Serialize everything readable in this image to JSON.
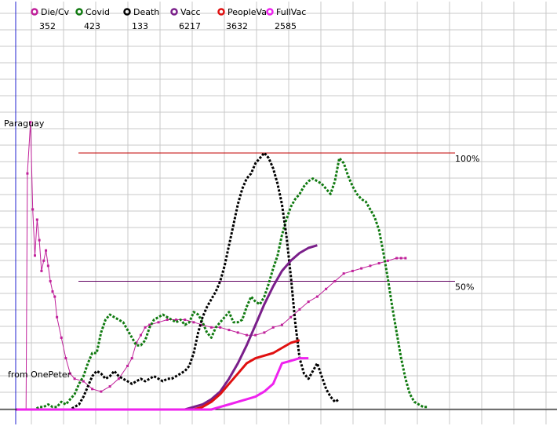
{
  "chart_data": {
    "type": "line",
    "title": "Paraguay",
    "credit": "from OnePeter",
    "grid": true,
    "ylim": [
      0,
      100
    ],
    "reference_lines": [
      {
        "label": "100%",
        "value": 100,
        "color": "#c00000"
      },
      {
        "label": "50%",
        "value": 50,
        "color": "#600060"
      }
    ],
    "legend": {
      "placement": "top",
      "items": [
        {
          "name": "Die/Cv",
          "value": "352",
          "color": "#c0209a"
        },
        {
          "name": "Covid",
          "value": "423",
          "color": "#107a10"
        },
        {
          "name": "Death",
          "value": "133",
          "color": "#000000"
        },
        {
          "name": "Vacc",
          "value": "6217",
          "color": "#7a1f8a"
        },
        {
          "name": "PeopleVa",
          "value": "3632",
          "color": "#e01010"
        },
        {
          "name": "FullVac",
          "value": "2585",
          "color": "#ee22ee"
        }
      ]
    },
    "series": [
      {
        "name": "Die/Cv",
        "color": "#c0209a",
        "points": [
          [
            0,
            0
          ],
          [
            2,
            0
          ],
          [
            2.3,
            92
          ],
          [
            3,
            112
          ],
          [
            3.5,
            78
          ],
          [
            4,
            60
          ],
          [
            4.5,
            74
          ],
          [
            5,
            66
          ],
          [
            5.5,
            54
          ],
          [
            6,
            58
          ],
          [
            6.5,
            62
          ],
          [
            7,
            56
          ],
          [
            7.5,
            50
          ],
          [
            8,
            46
          ],
          [
            8.5,
            44
          ],
          [
            9,
            36
          ],
          [
            10,
            28
          ],
          [
            11,
            20
          ],
          [
            12,
            14
          ],
          [
            13,
            12
          ],
          [
            15,
            11
          ],
          [
            17,
            8
          ],
          [
            19,
            7
          ],
          [
            21,
            9
          ],
          [
            23,
            12
          ],
          [
            25,
            17
          ],
          [
            26,
            20
          ],
          [
            27,
            26
          ],
          [
            28,
            29
          ],
          [
            29,
            32
          ],
          [
            30,
            33
          ],
          [
            32,
            34
          ],
          [
            34,
            35
          ],
          [
            36,
            35
          ],
          [
            38,
            35
          ],
          [
            40,
            34
          ],
          [
            42,
            33
          ],
          [
            44,
            32
          ],
          [
            46,
            32
          ],
          [
            48,
            31
          ],
          [
            50,
            30
          ],
          [
            52,
            29
          ],
          [
            54,
            29
          ],
          [
            56,
            30
          ],
          [
            58,
            32
          ],
          [
            60,
            33
          ],
          [
            62,
            36
          ],
          [
            64,
            39
          ],
          [
            66,
            42
          ],
          [
            68,
            44
          ],
          [
            70,
            47
          ],
          [
            72,
            50
          ],
          [
            74,
            53
          ],
          [
            76,
            54
          ],
          [
            78,
            55
          ],
          [
            80,
            56
          ],
          [
            82,
            57
          ],
          [
            84,
            58
          ],
          [
            86,
            59
          ],
          [
            87,
            59
          ],
          [
            88,
            59
          ]
        ]
      },
      {
        "name": "Covid",
        "color": "#107a10",
        "points": [
          [
            0,
            0
          ],
          [
            4,
            0
          ],
          [
            5,
            1
          ],
          [
            6,
            1
          ],
          [
            7,
            2
          ],
          [
            8,
            1
          ],
          [
            9,
            1
          ],
          [
            10,
            3
          ],
          [
            11,
            2
          ],
          [
            12,
            4
          ],
          [
            13,
            6
          ],
          [
            14,
            10
          ],
          [
            15,
            13
          ],
          [
            16,
            18
          ],
          [
            17,
            22
          ],
          [
            18,
            22
          ],
          [
            19,
            30
          ],
          [
            20,
            35
          ],
          [
            21,
            37
          ],
          [
            22,
            36
          ],
          [
            23,
            35
          ],
          [
            24,
            34
          ],
          [
            25,
            31
          ],
          [
            26,
            28
          ],
          [
            27,
            25
          ],
          [
            28,
            25
          ],
          [
            29,
            27
          ],
          [
            30,
            32
          ],
          [
            31,
            35
          ],
          [
            32,
            36
          ],
          [
            33,
            37
          ],
          [
            34,
            36
          ],
          [
            35,
            35
          ],
          [
            36,
            34
          ],
          [
            37,
            35
          ],
          [
            38,
            33
          ],
          [
            39,
            34
          ],
          [
            40,
            38
          ],
          [
            41,
            37
          ],
          [
            42,
            34
          ],
          [
            43,
            30
          ],
          [
            44,
            28
          ],
          [
            45,
            32
          ],
          [
            46,
            34
          ],
          [
            47,
            36
          ],
          [
            48,
            38
          ],
          [
            49,
            34
          ],
          [
            50,
            34
          ],
          [
            51,
            35
          ],
          [
            52,
            40
          ],
          [
            53,
            44
          ],
          [
            54,
            42
          ],
          [
            55,
            41
          ],
          [
            56,
            44
          ],
          [
            57,
            49
          ],
          [
            58,
            55
          ],
          [
            59,
            60
          ],
          [
            60,
            68
          ],
          [
            61,
            74
          ],
          [
            62,
            79
          ],
          [
            63,
            82
          ],
          [
            64,
            84
          ],
          [
            65,
            87
          ],
          [
            66,
            89
          ],
          [
            67,
            90
          ],
          [
            68,
            89
          ],
          [
            69,
            88
          ],
          [
            70,
            86
          ],
          [
            71,
            84
          ],
          [
            72,
            89
          ],
          [
            73,
            98
          ],
          [
            74,
            96
          ],
          [
            75,
            91
          ],
          [
            76,
            87
          ],
          [
            77,
            84
          ],
          [
            78,
            82
          ],
          [
            79,
            81
          ],
          [
            80,
            78
          ],
          [
            81,
            75
          ],
          [
            82,
            70
          ],
          [
            83,
            61
          ],
          [
            84,
            51
          ],
          [
            85,
            40
          ],
          [
            86,
            30
          ],
          [
            87,
            20
          ],
          [
            88,
            12
          ],
          [
            89,
            6
          ],
          [
            90,
            3
          ],
          [
            91,
            2
          ],
          [
            92,
            1
          ],
          [
            93,
            1
          ]
        ]
      },
      {
        "name": "Death",
        "color": "#000000",
        "points": [
          [
            0,
            0
          ],
          [
            12,
            0
          ],
          [
            13,
            1
          ],
          [
            14,
            2
          ],
          [
            15,
            5
          ],
          [
            16,
            9
          ],
          [
            17,
            13
          ],
          [
            18,
            15
          ],
          [
            19,
            14
          ],
          [
            20,
            12
          ],
          [
            21,
            13
          ],
          [
            22,
            15
          ],
          [
            23,
            13
          ],
          [
            24,
            12
          ],
          [
            25,
            11
          ],
          [
            26,
            10
          ],
          [
            27,
            11
          ],
          [
            28,
            12
          ],
          [
            29,
            11
          ],
          [
            30,
            12
          ],
          [
            31,
            13
          ],
          [
            32,
            12
          ],
          [
            33,
            11
          ],
          [
            34,
            12
          ],
          [
            35,
            12
          ],
          [
            36,
            13
          ],
          [
            37,
            14
          ],
          [
            38,
            15
          ],
          [
            39,
            17
          ],
          [
            40,
            22
          ],
          [
            41,
            30
          ],
          [
            42,
            36
          ],
          [
            43,
            40
          ],
          [
            44,
            43
          ],
          [
            45,
            46
          ],
          [
            46,
            50
          ],
          [
            47,
            56
          ],
          [
            48,
            64
          ],
          [
            49,
            72
          ],
          [
            50,
            80
          ],
          [
            51,
            86
          ],
          [
            52,
            90
          ],
          [
            53,
            92
          ],
          [
            54,
            96
          ],
          [
            55,
            98
          ],
          [
            56,
            100
          ],
          [
            57,
            98
          ],
          [
            58,
            94
          ],
          [
            59,
            88
          ],
          [
            60,
            80
          ],
          [
            61,
            68
          ],
          [
            62,
            52
          ],
          [
            63,
            34
          ],
          [
            64,
            20
          ],
          [
            65,
            14
          ],
          [
            66,
            12
          ],
          [
            67,
            15
          ],
          [
            68,
            18
          ],
          [
            69,
            13
          ],
          [
            70,
            8
          ],
          [
            71,
            5
          ],
          [
            72,
            3
          ],
          [
            73,
            4
          ]
        ]
      },
      {
        "name": "Vacc",
        "color": "#7a1f8a",
        "points": [
          [
            0,
            0
          ],
          [
            30,
            0
          ],
          [
            34,
            0
          ],
          [
            38,
            0
          ],
          [
            40,
            1
          ],
          [
            42,
            2
          ],
          [
            44,
            4
          ],
          [
            46,
            7
          ],
          [
            48,
            12
          ],
          [
            50,
            18
          ],
          [
            52,
            25
          ],
          [
            54,
            33
          ],
          [
            56,
            41
          ],
          [
            58,
            48
          ],
          [
            60,
            54
          ],
          [
            62,
            58
          ],
          [
            64,
            61
          ],
          [
            66,
            63
          ],
          [
            68,
            64
          ]
        ]
      },
      {
        "name": "PeopleVa",
        "color": "#e01010",
        "points": [
          [
            0,
            0
          ],
          [
            40,
            0
          ],
          [
            42,
            1
          ],
          [
            44,
            3
          ],
          [
            46,
            6
          ],
          [
            48,
            10
          ],
          [
            50,
            14
          ],
          [
            52,
            18
          ],
          [
            54,
            20
          ],
          [
            56,
            21
          ],
          [
            58,
            22
          ],
          [
            60,
            24
          ],
          [
            62,
            26
          ],
          [
            64,
            27
          ]
        ]
      },
      {
        "name": "FullVac",
        "color": "#ee22ee",
        "points": [
          [
            0,
            0
          ],
          [
            40,
            0
          ],
          [
            44,
            0
          ],
          [
            46,
            1
          ],
          [
            48,
            2
          ],
          [
            50,
            3
          ],
          [
            52,
            4
          ],
          [
            54,
            5
          ],
          [
            56,
            7
          ],
          [
            58,
            10
          ],
          [
            59,
            14
          ],
          [
            60,
            18
          ],
          [
            62,
            19
          ],
          [
            64,
            20
          ],
          [
            66,
            20
          ]
        ]
      }
    ]
  }
}
